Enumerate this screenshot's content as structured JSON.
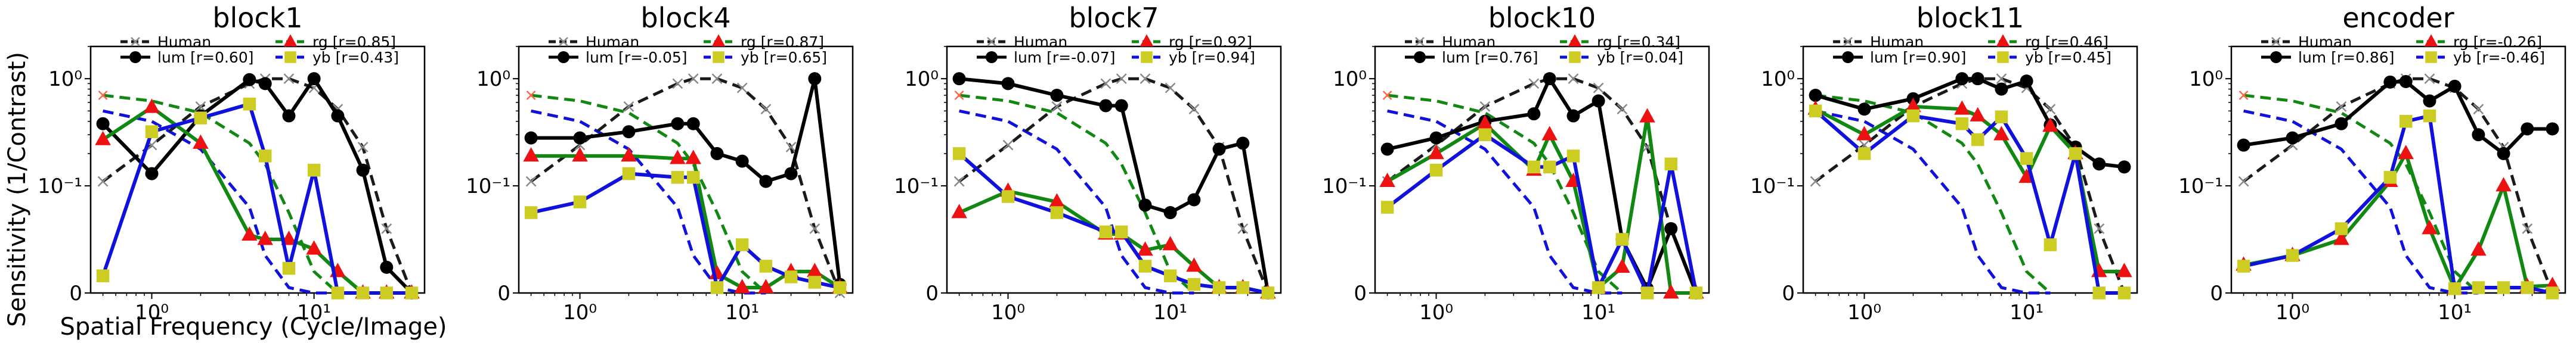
{
  "figure": {
    "xlabel": "Spatial Frequency (Cycle/Image)",
    "ylabel": "Sensitivity (1/Contrast)"
  },
  "colors": {
    "human": "#1a1a1a",
    "human_marker": "#888888",
    "lum": "#000000",
    "rg": "#118811",
    "rg_marker": "#ee1111",
    "yb": "#1111dd",
    "yb_marker": "#cccc22",
    "dashed_lum": "#000000",
    "dashed_rg": "#118811",
    "dashed_yb": "#1111dd",
    "dashed_start": "#ff6644"
  },
  "chart_data": [
    {
      "type": "line",
      "title": "block1",
      "xscale": "log",
      "yscale": "symlog",
      "ylim": [
        0,
        2
      ],
      "grid": false,
      "legend_placement": "top",
      "yticklabels": [
        "0",
        "10⁻¹",
        "10⁰"
      ],
      "xticklabels": [
        "10⁰",
        "10¹"
      ],
      "legend": {
        "human": "Human",
        "lum": "lum [r=0.60]",
        "rg": "rg    [r=0.85]",
        "yb": "yb    [r=0.43]"
      },
      "x": [
        0.5,
        1,
        2,
        4,
        5,
        7,
        10,
        14,
        20,
        28,
        40
      ],
      "series": [
        {
          "name": "Human",
          "values": [
            0.11,
            0.24,
            0.55,
            0.9,
            1.0,
            1.0,
            0.82,
            0.52,
            0.23,
            0.06,
            0.0
          ]
        },
        {
          "name": "lum",
          "values": [
            0.38,
            0.13,
            0.45,
            0.98,
            0.9,
            0.45,
            1.0,
            0.45,
            0.14,
            0.024,
            0.0
          ]
        },
        {
          "name": "rg",
          "values": [
            0.27,
            0.54,
            0.25,
            0.054,
            0.05,
            0.05,
            0.041,
            0.02,
            0.0,
            0.0,
            0.0
          ]
        },
        {
          "name": "yb",
          "values": [
            0.016,
            0.32,
            0.43,
            0.58,
            0.19,
            0.023,
            0.14,
            0.0,
            0.0,
            0.0,
            0.0
          ]
        }
      ],
      "csf_curves": {
        "lum_ref": [
          0.7,
          0.62,
          0.48,
          0.25,
          0.16,
          0.075,
          0.02,
          0.0
        ],
        "rg_ref": [
          0.7,
          0.58,
          0.42,
          0.22,
          0.14,
          0.055,
          0.01,
          0.0
        ],
        "yb_ref": [
          0.5,
          0.4,
          0.22,
          0.08,
          0.035,
          0.005,
          0.0,
          0.0
        ]
      }
    },
    {
      "type": "line",
      "title": "block4",
      "xscale": "log",
      "yscale": "symlog",
      "ylim": [
        0,
        2
      ],
      "grid": false,
      "legend_placement": "top",
      "yticklabels": [
        "0",
        "10⁻¹",
        "10⁰"
      ],
      "xticklabels": [
        "10⁰",
        "10¹"
      ],
      "legend": {
        "human": "Human",
        "lum": "lum [r=-0.05]",
        "rg": "rg    [r=0.87]",
        "yb": "yb    [r=0.65]"
      },
      "x": [
        0.5,
        1,
        2,
        4,
        5,
        7,
        10,
        14,
        20,
        28,
        40
      ],
      "series": [
        {
          "name": "Human",
          "values": [
            0.11,
            0.24,
            0.55,
            0.9,
            1.0,
            1.0,
            0.82,
            0.52,
            0.23,
            0.06,
            0.0
          ]
        },
        {
          "name": "lum",
          "values": [
            0.28,
            0.28,
            0.32,
            0.38,
            0.38,
            0.2,
            0.17,
            0.11,
            0.13,
            1.0,
            0.008
          ]
        },
        {
          "name": "rg",
          "values": [
            0.19,
            0.19,
            0.19,
            0.18,
            0.18,
            0.018,
            0.005,
            0.005,
            0.02,
            0.02,
            0.005
          ]
        },
        {
          "name": "yb",
          "values": [
            0.075,
            0.085,
            0.13,
            0.12,
            0.12,
            0.005,
            0.045,
            0.025,
            0.015,
            0.01,
            0.005
          ]
        }
      ],
      "csf_curves": {
        "lum_ref": [
          0.7,
          0.62,
          0.48,
          0.25,
          0.16,
          0.075,
          0.02,
          0.0
        ],
        "rg_ref": [
          0.7,
          0.58,
          0.42,
          0.22,
          0.14,
          0.055,
          0.01,
          0.0
        ],
        "yb_ref": [
          0.5,
          0.4,
          0.22,
          0.08,
          0.035,
          0.005,
          0.0,
          0.0
        ]
      }
    },
    {
      "type": "line",
      "title": "block7",
      "xscale": "log",
      "yscale": "symlog",
      "ylim": [
        0,
        2
      ],
      "grid": false,
      "legend_placement": "top",
      "yticklabels": [
        "0",
        "10⁻¹",
        "10⁰"
      ],
      "xticklabels": [
        "10⁰",
        "10¹"
      ],
      "legend": {
        "human": "Human",
        "lum": "lum [r=-0.07]",
        "rg": "rg    [r=0.92]",
        "yb": "yb    [r=0.94]"
      },
      "x": [
        0.5,
        1,
        2,
        4,
        5,
        7,
        10,
        14,
        20,
        28,
        40
      ],
      "series": [
        {
          "name": "Human",
          "values": [
            0.11,
            0.24,
            0.55,
            0.9,
            1.0,
            1.0,
            0.82,
            0.52,
            0.23,
            0.06,
            0.0
          ]
        },
        {
          "name": "lum",
          "values": [
            1.0,
            0.9,
            0.7,
            0.56,
            0.56,
            0.082,
            0.075,
            0.087,
            0.22,
            0.25,
            0.0
          ]
        },
        {
          "name": "rg",
          "values": [
            0.075,
            0.095,
            0.085,
            0.055,
            0.055,
            0.04,
            0.045,
            0.025,
            0.005,
            0.005,
            0.0
          ]
        },
        {
          "name": "yb",
          "values": [
            0.2,
            0.09,
            0.075,
            0.057,
            0.057,
            0.025,
            0.016,
            0.008,
            0.005,
            0.005,
            0.0
          ]
        }
      ],
      "csf_curves": {
        "lum_ref": [
          0.7,
          0.62,
          0.48,
          0.25,
          0.16,
          0.075,
          0.02,
          0.0
        ],
        "rg_ref": [
          0.7,
          0.58,
          0.42,
          0.22,
          0.14,
          0.055,
          0.01,
          0.0
        ],
        "yb_ref": [
          0.5,
          0.4,
          0.22,
          0.08,
          0.035,
          0.005,
          0.0,
          0.0
        ]
      }
    },
    {
      "type": "line",
      "title": "block10",
      "xscale": "log",
      "yscale": "symlog",
      "ylim": [
        0,
        2
      ],
      "grid": false,
      "legend_placement": "top",
      "yticklabels": [
        "0",
        "10⁻¹",
        "10⁰"
      ],
      "xticklabels": [
        "10⁰",
        "10¹"
      ],
      "legend": {
        "human": "Human",
        "lum": "lum [r=0.76]",
        "rg": "rg    [r=0.34]",
        "yb": "yb    [r=0.04]"
      },
      "x": [
        0.5,
        1,
        2,
        4,
        5,
        7,
        10,
        14,
        20,
        28,
        40
      ],
      "series": [
        {
          "name": "Human",
          "values": [
            0.11,
            0.24,
            0.55,
            0.9,
            1.0,
            1.0,
            0.82,
            0.52,
            0.23,
            0.06,
            0.0
          ]
        },
        {
          "name": "lum",
          "values": [
            0.22,
            0.28,
            0.4,
            0.47,
            1.0,
            0.45,
            0.62,
            0.05,
            0.004,
            0.06,
            0.0
          ]
        },
        {
          "name": "rg",
          "values": [
            0.11,
            0.2,
            0.38,
            0.14,
            0.3,
            0.11,
            0.005,
            0.024,
            0.44,
            0.0,
            0.0
          ]
        },
        {
          "name": "yb",
          "values": [
            0.08,
            0.14,
            0.3,
            0.15,
            0.15,
            0.19,
            0.005,
            0.05,
            0.0,
            0.16,
            0.0
          ]
        }
      ],
      "csf_curves": {
        "lum_ref": [
          0.7,
          0.62,
          0.48,
          0.25,
          0.16,
          0.075,
          0.02,
          0.0
        ],
        "rg_ref": [
          0.7,
          0.58,
          0.42,
          0.22,
          0.14,
          0.055,
          0.01,
          0.0
        ],
        "yb_ref": [
          0.5,
          0.4,
          0.22,
          0.08,
          0.035,
          0.005,
          0.0,
          0.0
        ]
      }
    },
    {
      "type": "line",
      "title": "block11",
      "xscale": "log",
      "yscale": "symlog",
      "ylim": [
        0,
        2
      ],
      "grid": false,
      "legend_placement": "top",
      "yticklabels": [
        "0",
        "10⁻¹",
        "10⁰"
      ],
      "xticklabels": [
        "10⁰",
        "10¹"
      ],
      "legend": {
        "human": "Human",
        "lum": "lum [r=0.90]",
        "rg": "rg    [r=0.46]",
        "yb": "yb    [r=0.45]"
      },
      "x": [
        0.5,
        1,
        2,
        4,
        5,
        7,
        10,
        14,
        20,
        28,
        40
      ],
      "series": [
        {
          "name": "Human",
          "values": [
            0.11,
            0.24,
            0.55,
            0.9,
            1.0,
            1.0,
            0.82,
            0.52,
            0.23,
            0.06,
            0.0
          ]
        },
        {
          "name": "lum",
          "values": [
            0.7,
            0.52,
            0.65,
            1.0,
            1.0,
            0.8,
            0.95,
            0.37,
            0.23,
            0.16,
            0.15
          ]
        },
        {
          "name": "rg",
          "values": [
            0.52,
            0.3,
            0.55,
            0.52,
            0.45,
            0.3,
            0.12,
            0.36,
            0.2,
            0.02,
            0.02
          ]
        },
        {
          "name": "yb",
          "values": [
            0.5,
            0.2,
            0.45,
            0.38,
            0.27,
            0.44,
            0.18,
            0.045,
            0.2,
            0.0,
            0.0
          ]
        }
      ],
      "csf_curves": {
        "lum_ref": [
          0.7,
          0.62,
          0.48,
          0.25,
          0.16,
          0.075,
          0.02,
          0.0
        ],
        "rg_ref": [
          0.7,
          0.58,
          0.42,
          0.22,
          0.14,
          0.055,
          0.01,
          0.0
        ],
        "yb_ref": [
          0.5,
          0.4,
          0.22,
          0.08,
          0.035,
          0.005,
          0.0,
          0.0
        ]
      }
    },
    {
      "type": "line",
      "title": "encoder",
      "xscale": "log",
      "yscale": "symlog",
      "ylim": [
        0,
        2
      ],
      "grid": false,
      "legend_placement": "top",
      "yticklabels": [
        "0",
        "10⁻¹",
        "10⁰"
      ],
      "xticklabels": [
        "10⁰",
        "10¹"
      ],
      "legend": {
        "human": "Human",
        "lum": "lum [r=0.86]",
        "rg": "rg    [r=-0.26]",
        "yb": "yb    [r=-0.46]"
      },
      "x": [
        0.5,
        1,
        2,
        4,
        5,
        7,
        10,
        14,
        20,
        28,
        40
      ],
      "series": [
        {
          "name": "Human",
          "values": [
            0.11,
            0.24,
            0.55,
            0.9,
            1.0,
            1.0,
            0.82,
            0.52,
            0.23,
            0.06,
            0.0
          ]
        },
        {
          "name": "lum",
          "values": [
            0.24,
            0.28,
            0.38,
            0.93,
            0.94,
            0.62,
            0.85,
            0.3,
            0.2,
            0.34,
            0.34
          ]
        },
        {
          "name": "rg",
          "values": [
            0.026,
            0.035,
            0.05,
            0.11,
            0.2,
            0.06,
            0.004,
            0.04,
            0.1,
            0.006,
            0.007
          ]
        },
        {
          "name": "yb",
          "values": [
            0.025,
            0.035,
            0.06,
            0.12,
            0.4,
            0.45,
            0.004,
            0.005,
            0.005,
            0.005,
            0.0
          ]
        }
      ],
      "csf_curves": {
        "lum_ref": [
          0.7,
          0.62,
          0.48,
          0.25,
          0.16,
          0.075,
          0.02,
          0.0
        ],
        "rg_ref": [
          0.7,
          0.58,
          0.42,
          0.22,
          0.14,
          0.055,
          0.01,
          0.0
        ],
        "yb_ref": [
          0.5,
          0.4,
          0.22,
          0.08,
          0.035,
          0.005,
          0.0,
          0.0
        ]
      }
    }
  ]
}
